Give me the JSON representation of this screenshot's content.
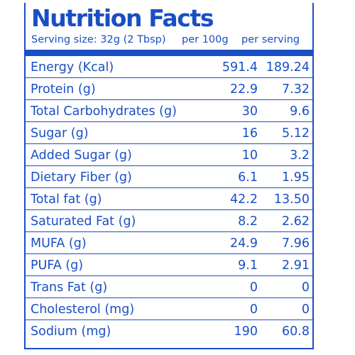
{
  "title": "Nutrition Facts",
  "serving_size": "Serving size: 32g (2 Tbsp)",
  "columns": {
    "per_100g": "per 100g",
    "per_serving": "per serving"
  },
  "rows": [
    {
      "nutrient": "Energy (Kcal)",
      "per_100g": "591.4",
      "per_serving": "189.24"
    },
    {
      "nutrient": "Protein (g)",
      "per_100g": "22.9",
      "per_serving": "7.32"
    },
    {
      "nutrient": "Total Carbohydrates (g)",
      "per_100g": "30",
      "per_serving": "9.6"
    },
    {
      "nutrient": "Sugar (g)",
      "per_100g": "16",
      "per_serving": "5.12"
    },
    {
      "nutrient": "Added Sugar (g)",
      "per_100g": "10",
      "per_serving": "3.2"
    },
    {
      "nutrient": "Dietary Fiber (g)",
      "per_100g": "6.1",
      "per_serving": "1.95"
    },
    {
      "nutrient": "Total fat (g)",
      "per_100g": "42.2",
      "per_serving": "13.50"
    },
    {
      "nutrient": "Saturated Fat (g)",
      "per_100g": "8.2",
      "per_serving": "2.62"
    },
    {
      "nutrient": "MUFA (g)",
      "per_100g": "24.9",
      "per_serving": "7.96"
    },
    {
      "nutrient": "PUFA (g)",
      "per_100g": "9.1",
      "per_serving": "2.91"
    },
    {
      "nutrient": "Trans Fat (g)",
      "per_100g": "0",
      "per_serving": "0"
    },
    {
      "nutrient": "Cholesterol (mg)",
      "per_100g": "0",
      "per_serving": "0"
    },
    {
      "nutrient": "Sodium (mg)",
      "per_100g": "190",
      "per_serving": "60.8"
    }
  ],
  "colors": {
    "brand_blue": "#1a4fc4",
    "background": "#ffffff"
  }
}
